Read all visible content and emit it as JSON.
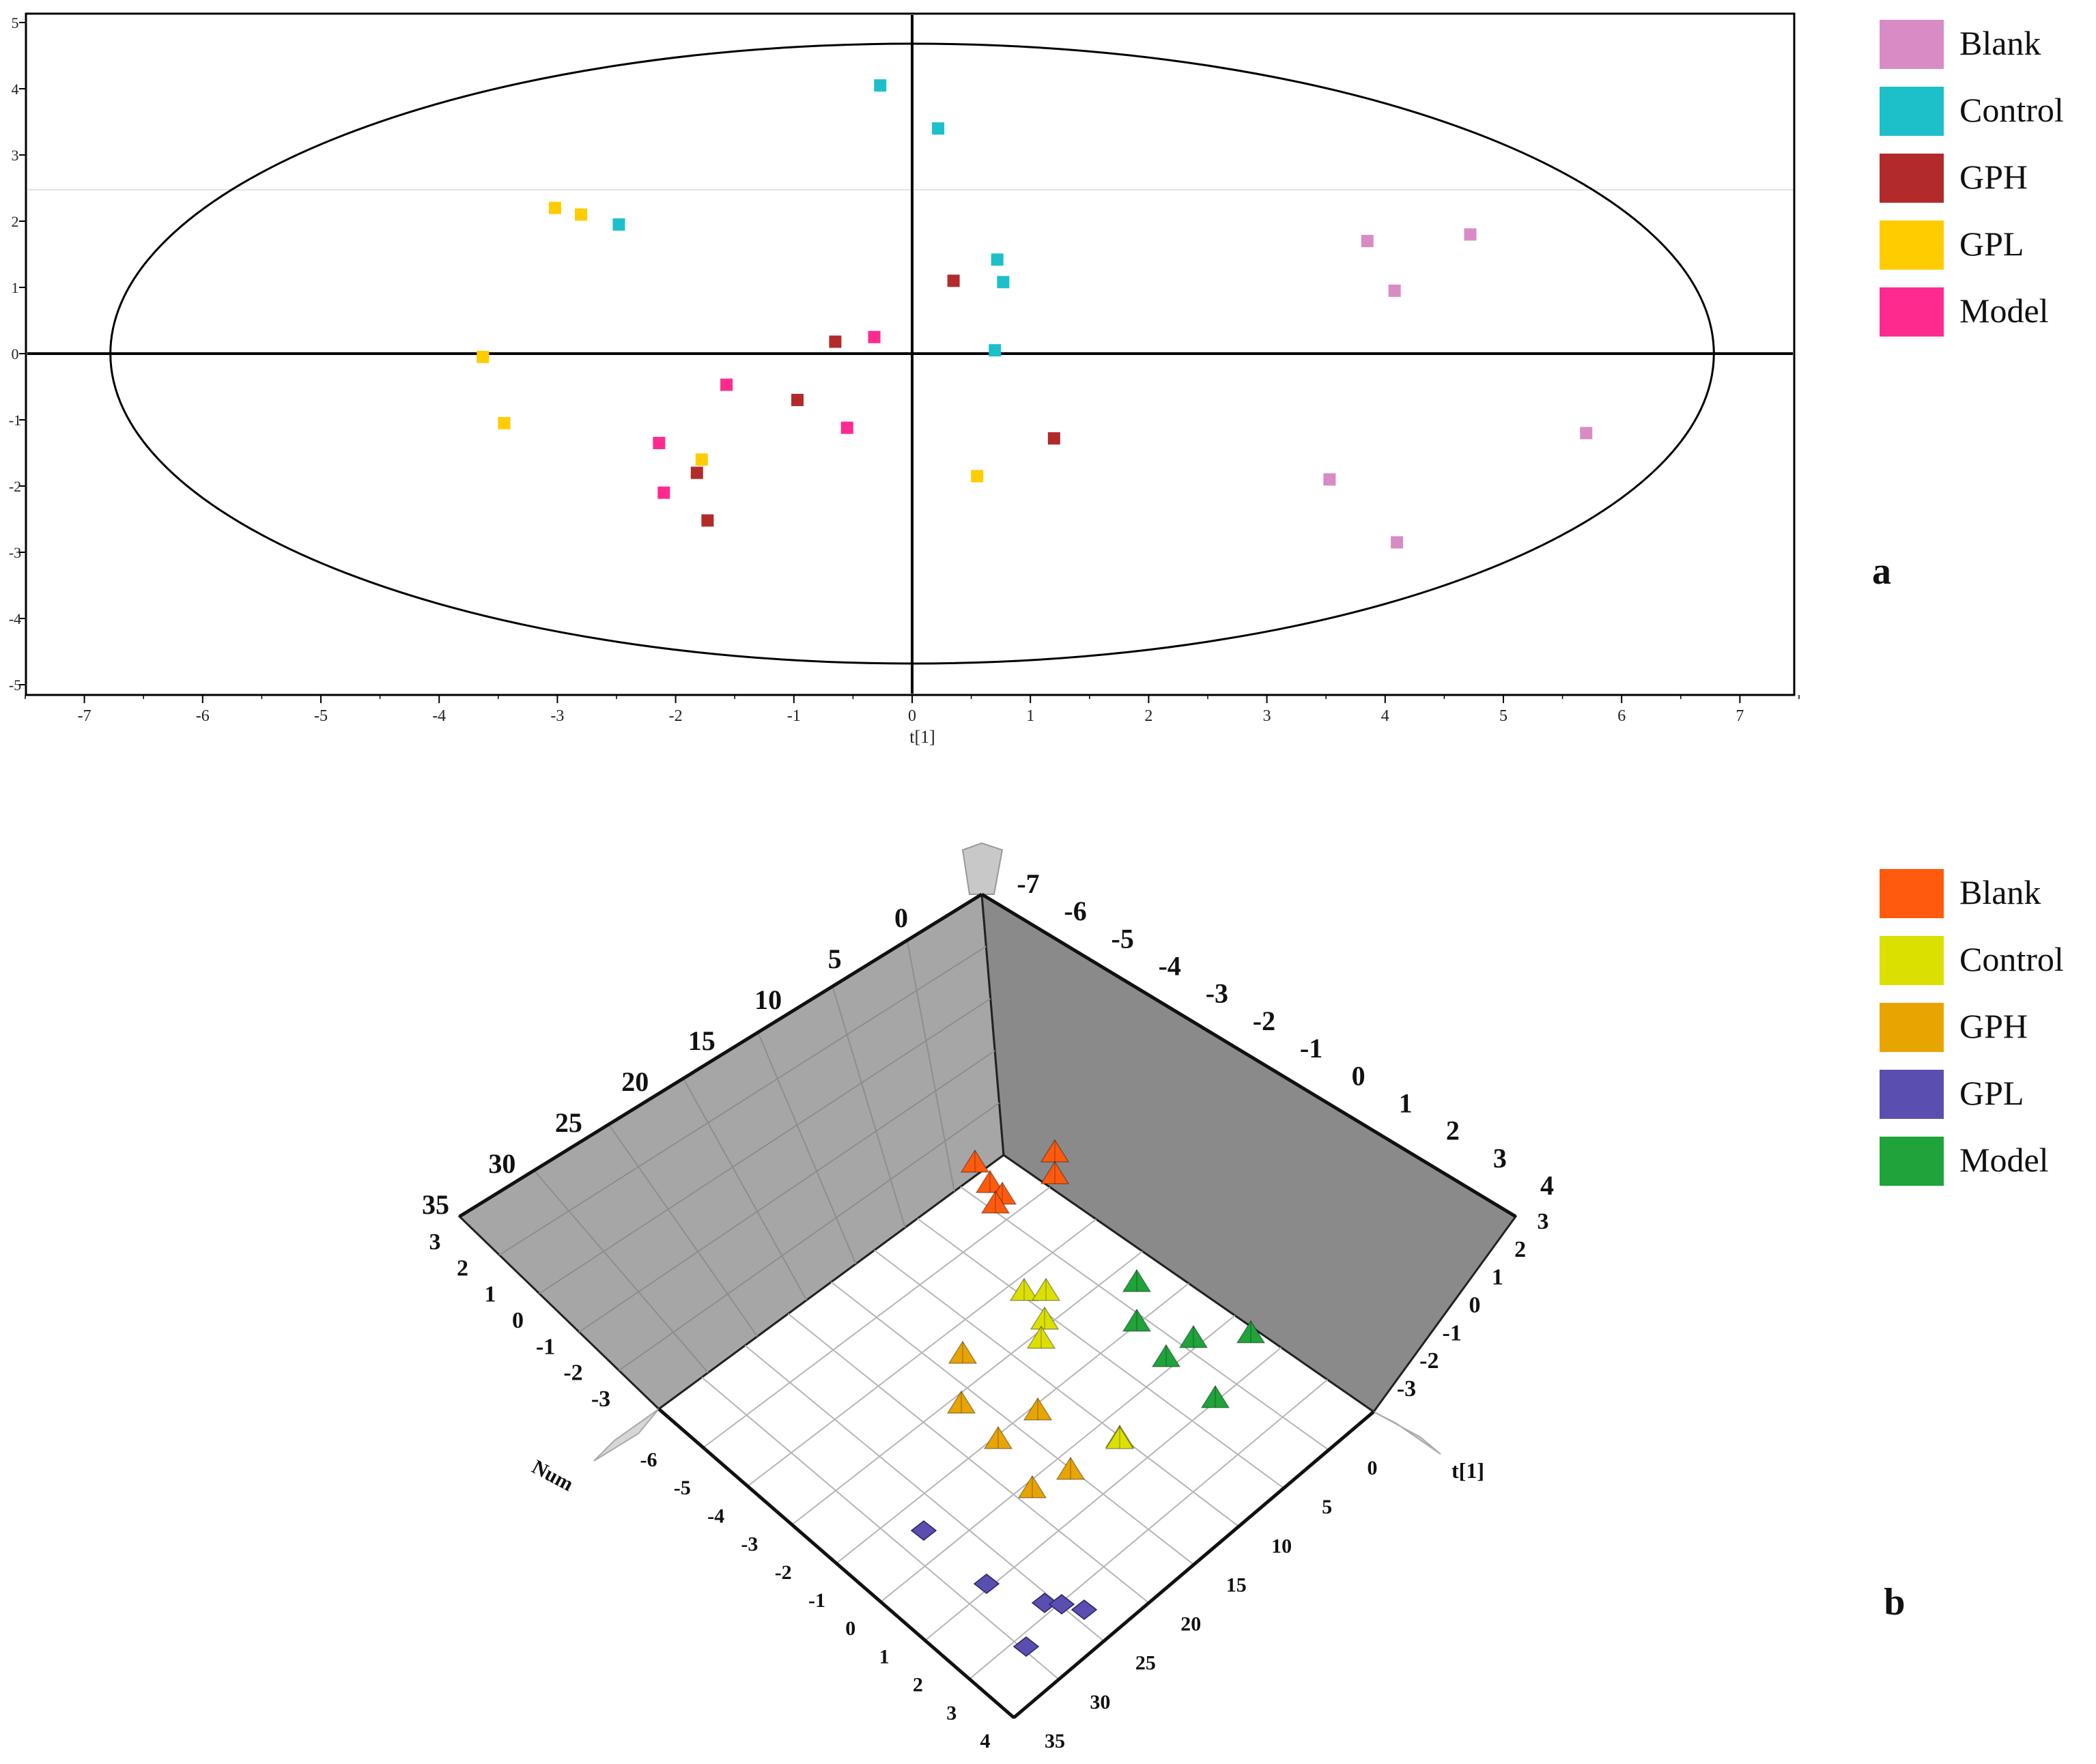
{
  "panels": [
    {
      "letter": "a"
    },
    {
      "letter": "b"
    }
  ],
  "chart_data": [
    {
      "type": "scatter",
      "panel": "a",
      "title": "",
      "xlabel": "t[1]",
      "ylabel": "",
      "xlim": [
        -7.5,
        7.5
      ],
      "ylim": [
        -5.1,
        5.1
      ],
      "xticks": [
        -7,
        -6,
        -5,
        -4,
        -3,
        -2,
        -1,
        0,
        1,
        2,
        3,
        4,
        5,
        6,
        7
      ],
      "yticks": [
        5,
        4,
        3,
        2,
        1,
        0,
        -1,
        -2,
        -3,
        -4,
        -5
      ],
      "ellipse": {
        "rx": 6.78,
        "ry": 4.68
      },
      "legend_position": "right",
      "series": [
        {
          "name": "Blank",
          "color": "#D98BC5",
          "points": [
            [
              3.85,
              1.7
            ],
            [
              4.72,
              1.8
            ],
            [
              4.08,
              0.95
            ],
            [
              5.7,
              -1.2
            ],
            [
              3.53,
              -1.9
            ],
            [
              4.1,
              -2.85
            ]
          ]
        },
        {
          "name": "Control",
          "color": "#1DBFC9",
          "points": [
            [
              -0.27,
              4.05
            ],
            [
              0.22,
              3.4
            ],
            [
              -2.48,
              1.95
            ],
            [
              0.72,
              1.42
            ],
            [
              0.77,
              1.08
            ],
            [
              0.7,
              0.05
            ]
          ]
        },
        {
          "name": "GPH",
          "color": "#B22A2A",
          "points": [
            [
              0.35,
              1.1
            ],
            [
              -0.65,
              0.18
            ],
            [
              -0.97,
              -0.7
            ],
            [
              1.2,
              -1.28
            ],
            [
              -1.82,
              -1.8
            ],
            [
              -1.73,
              -2.52
            ]
          ]
        },
        {
          "name": "GPL",
          "color": "#FFCC00",
          "points": [
            [
              -3.02,
              2.2
            ],
            [
              -2.8,
              2.1
            ],
            [
              -3.63,
              -0.05
            ],
            [
              -3.45,
              -1.05
            ],
            [
              -1.78,
              -1.6
            ],
            [
              0.55,
              -1.85
            ]
          ]
        },
        {
          "name": "Model",
          "color": "#FF2A8E",
          "points": [
            [
              -0.32,
              0.25
            ],
            [
              -1.57,
              -0.47
            ],
            [
              -0.55,
              -1.12
            ],
            [
              -2.14,
              -1.35
            ],
            [
              -2.1,
              -2.1
            ]
          ]
        }
      ]
    },
    {
      "type": "scatter",
      "subtype": "3d",
      "panel": "b",
      "axes": {
        "x": {
          "label": "t[1]",
          "ticks": [
            "-7",
            "-6",
            "-5",
            "-4",
            "-3",
            "-2",
            "-1",
            "0",
            "1",
            "2",
            "3",
            "4"
          ]
        },
        "y": {
          "label": "",
          "ticks": [
            "3",
            "2",
            "1",
            "0",
            "-1",
            "-2",
            "-3"
          ]
        },
        "z": {
          "label": "Num",
          "ticks": [
            "0",
            "5",
            "10",
            "15",
            "20",
            "25",
            "30",
            "35"
          ]
        },
        "front_left": {
          "ticks": [
            "-6",
            "-5",
            "-4",
            "-3",
            "-2",
            "-1",
            "0",
            "1",
            "2",
            "3",
            "4"
          ]
        },
        "front_right": {
          "ticks": [
            "0",
            "5",
            "10",
            "15",
            "20",
            "25",
            "30",
            "35"
          ]
        },
        "left_side": {
          "ticks": [
            "3",
            "2",
            "1",
            "0",
            "-1",
            "-2",
            "-3"
          ]
        },
        "right_side": {
          "ticks": [
            "3",
            "2",
            "1",
            "0",
            "-1",
            "-2",
            "-3"
          ]
        }
      },
      "legend_position": "right",
      "series": [
        {
          "name": "Blank",
          "color": "#FF5A0E",
          "marker": "triangle",
          "points": 6
        },
        {
          "name": "Control",
          "color": "#DCE000",
          "marker": "triangle",
          "points": 6
        },
        {
          "name": "GPH",
          "color": "#E8A400",
          "marker": "triangle",
          "points": 6
        },
        {
          "name": "GPL",
          "color": "#5A4FB0",
          "marker": "diamond",
          "points": 6
        },
        {
          "name": "Model",
          "color": "#1FA33A",
          "marker": "triangle",
          "points": 6
        }
      ]
    }
  ]
}
